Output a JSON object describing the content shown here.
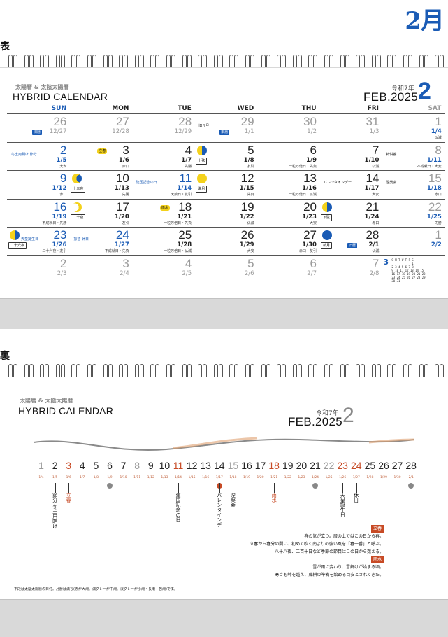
{
  "corner_month": "2月",
  "front_label": "表",
  "back_label": "裏",
  "brand_sub": "太陽暦 & 太陰太陽暦",
  "brand_title": "HYBRID CALENDAR",
  "era": "令和7年",
  "feb_label": "FEB.2025",
  "big_month": "2",
  "weekdays": [
    "SUN",
    "MON",
    "TUE",
    "WED",
    "THU",
    "FRI",
    "SAT"
  ],
  "weeks": [
    [
      {
        "d": "26",
        "l": "12/27",
        "tag": "旧暦",
        "tagc": "blue",
        "s": "dim"
      },
      {
        "d": "27",
        "l": "12/28",
        "s": "dim"
      },
      {
        "d": "28",
        "l": "12/29",
        "s": "dim"
      },
      {
        "d": "29",
        "l": "1/1",
        "tag": "旧暦",
        "tagc": "blue",
        "ev": "旧元旦",
        "s": "dim"
      },
      {
        "d": "30",
        "l": "1/2",
        "s": "dim"
      },
      {
        "d": "31",
        "l": "1/3",
        "s": "dim"
      },
      {
        "d": "1",
        "l": "1/4",
        "n": "仏滅",
        "s": "sat"
      }
    ],
    [
      {
        "d": "2",
        "l": "1/5",
        "n": "大安",
        "ev": "冬土用明け 節分",
        "s": "blue"
      },
      {
        "d": "3",
        "l": "1/6",
        "n": "赤口",
        "tag": "立春",
        "tagc": "yellow",
        "s": "dark"
      },
      {
        "d": "4",
        "l": "1/7",
        "n": "先勝",
        "s": "dark"
      },
      {
        "d": "5",
        "l": "1/8",
        "n": "友引",
        "moon": "half",
        "tag": "上弦",
        "tagc": "outline",
        "s": "dark"
      },
      {
        "d": "6",
        "l": "1/9",
        "n": "一粒万倍日・先負",
        "s": "dark"
      },
      {
        "d": "7",
        "l": "1/10",
        "n": "仏滅",
        "s": "dark"
      },
      {
        "d": "8",
        "l": "1/11",
        "n": "不成就日・大安",
        "ev": "針供養",
        "s": "sat"
      }
    ],
    [
      {
        "d": "9",
        "l": "1/12",
        "n": "赤口",
        "s": "blue"
      },
      {
        "d": "10",
        "l": "1/13",
        "n": "先勝",
        "moon": "gibbous",
        "tag": "十三夜",
        "tagc": "outline",
        "s": "dark"
      },
      {
        "d": "11",
        "l": "1/14",
        "n": "天赦日・友引",
        "ev": "建国記念の日",
        "s": "blue"
      },
      {
        "d": "12",
        "l": "1/15",
        "n": "先負",
        "moon": "full",
        "tag": "満月",
        "tagc": "outline",
        "s": "dark"
      },
      {
        "d": "13",
        "l": "1/16",
        "n": "一粒万倍日・仏滅",
        "s": "dark"
      },
      {
        "d": "14",
        "l": "1/17",
        "n": "大安",
        "ev": "バレンタインデー",
        "s": "dark"
      },
      {
        "d": "15",
        "l": "1/18",
        "n": "赤口",
        "ev": "涅槃会",
        "s": "sat"
      }
    ],
    [
      {
        "d": "16",
        "l": "1/19",
        "n": "不成就日・先勝",
        "s": "blue"
      },
      {
        "d": "17",
        "l": "1/20",
        "n": "友引",
        "moon": "crescent",
        "tag": "二十夜",
        "tagc": "outline",
        "s": "dark"
      },
      {
        "d": "18",
        "l": "1/21",
        "n": "一粒万倍日・先負",
        "tag": "雨水",
        "tagc": "yellow",
        "s": "dark"
      },
      {
        "d": "19",
        "l": "1/22",
        "n": "仏滅",
        "s": "dark"
      },
      {
        "d": "20",
        "l": "1/23",
        "n": "大安",
        "s": "dark"
      },
      {
        "d": "21",
        "l": "1/24",
        "n": "赤口",
        "moon": "half",
        "tag": "下弦",
        "tagc": "outline",
        "s": "dark"
      },
      {
        "d": "22",
        "l": "1/25",
        "n": "先勝",
        "s": "sat"
      }
    ],
    [
      {
        "d": "23",
        "l": "1/26",
        "n": "二十六夜・友引",
        "moon": "half",
        "tag": "二十六夜",
        "tagc": "outline",
        "ev": "天皇誕生日",
        "s": "blue"
      },
      {
        "d": "24",
        "l": "1/27",
        "n": "不成就日・先負",
        "ev": "振替 休日",
        "s": "blue"
      },
      {
        "d": "25",
        "l": "1/28",
        "n": "一粒万倍日・仏滅",
        "s": "dark"
      },
      {
        "d": "26",
        "l": "1/29",
        "n": "大安",
        "s": "dark"
      },
      {
        "d": "27",
        "l": "1/30",
        "n": "赤口・友引",
        "s": "dark"
      },
      {
        "d": "28",
        "l": "2/1",
        "n": "仏滅",
        "moon": "new",
        "tag": "新月",
        "tagc": "outline",
        "tag2": "旧暦",
        "s": "dark"
      },
      {
        "d": "1",
        "l": "2/2",
        "s": "sat"
      }
    ],
    [
      {
        "d": "2",
        "l": "2/3",
        "s": "dim"
      },
      {
        "d": "3",
        "l": "2/4",
        "s": "dim"
      },
      {
        "d": "4",
        "l": "2/5",
        "s": "dim"
      },
      {
        "d": "5",
        "l": "2/6",
        "s": "dim"
      },
      {
        "d": "6",
        "l": "2/7",
        "s": "dim"
      },
      {
        "d": "7",
        "l": "2/8",
        "s": "dim"
      },
      {
        "d": "",
        "l": "",
        "s": "mini"
      }
    ]
  ],
  "mini_march": {
    "month": "3",
    "rows": [
      "S M T W T F S",
      "            1",
      "2 3 4 5 6 7 8",
      "9 10 11 12 13 14 15",
      "16 17 18 19 20 21 22",
      "23 24 25 26 27 28 29",
      "30 31"
    ]
  },
  "back_days": [
    "1",
    "2",
    "3",
    "4",
    "5",
    "6",
    "7",
    "8",
    "9",
    "10",
    "11",
    "12",
    "13",
    "14",
    "15",
    "16",
    "17",
    "18",
    "19",
    "20",
    "21",
    "22",
    "23",
    "24",
    "25",
    "26",
    "27",
    "28"
  ],
  "back_lunar": [
    "1/4",
    "1/5",
    "1/6",
    "1/7",
    "1/8",
    "1/9",
    "1/10",
    "1/11",
    "1/12",
    "1/13",
    "1/14",
    "1/15",
    "1/16",
    "1/17",
    "1/18",
    "1/19",
    "1/20",
    "1/21",
    "1/22",
    "1/23",
    "1/24",
    "1/25",
    "1/26",
    "1/27",
    "1/28",
    "1/29",
    "1/30",
    "2/1"
  ],
  "back_events": [
    {
      "day": 2,
      "text": "節分 冬土用明け"
    },
    {
      "day": 3,
      "text": "立春"
    },
    {
      "day": 11,
      "text": "建国記念の日"
    },
    {
      "day": 14,
      "text": "バレンタインデー"
    },
    {
      "day": 15,
      "text": "涅槃会"
    },
    {
      "day": 18,
      "text": "雨水"
    },
    {
      "day": 23,
      "text": "天皇誕生日"
    },
    {
      "day": 24,
      "text": "休日"
    }
  ],
  "desc_block": {
    "h1": "立春",
    "l1": "春の気が立つ。暦の上ではこの日から春。",
    "l2": "立春から春分の間に、初めて吹く南よりの強い風を「春一番」と呼ぶ。",
    "l3": "八十八夜、二百十日など季節の節目はこの日から数える。",
    "h2": "雨水",
    "l4": "雪が雨に変わり、雪解けが始まる頃。",
    "l5": "寒さも峠を越え、農耕の準備を始める目安とされてきた。"
  },
  "footnote": "下段は太陰太陽暦の日付。月齢は満ち(赤が大潮、濃グレーが中潮、淡グレーが小潮・長潮・若潮)です。",
  "colors": {
    "accent": "#1a5bb5",
    "lunar": "#c74a25",
    "moon": "#f4d21c"
  }
}
